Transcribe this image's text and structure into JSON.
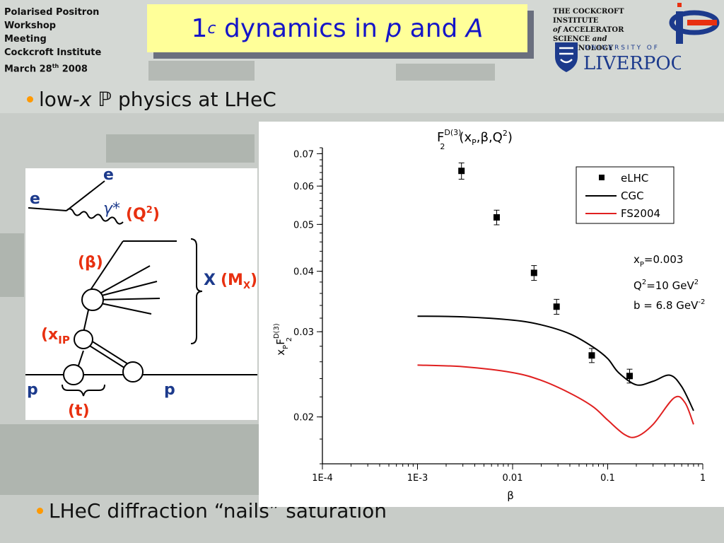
{
  "conference": {
    "line1": "Polarised Positron",
    "line2": "Workshop",
    "line3": "Meeting",
    "line4": "Cockcroft Institute",
    "date_prefix": "March 28",
    "date_sup": "th",
    "date_year": " 2008"
  },
  "slide_title": {
    "part1": "1",
    "sub": "c",
    "part2": " dynamics in ",
    "p": "p",
    "and": " and ",
    "A": "A"
  },
  "institute": {
    "line1": "THE COCKCROFT INSTITUTE",
    "line2_of": "of",
    "line2_rest": " ACCELERATOR",
    "line3_a": "SCIENCE ",
    "line3_and": "and",
    "line3_b": " TECHNOLOGY"
  },
  "liverpool": {
    "university_of": "U N I V E R S I T Y   O F",
    "name": "LIVERPOOL"
  },
  "bullets": {
    "first_pre": "low-",
    "first_x": "x",
    "first_pom": " ℙ",
    "first_post": " physics at LHeC",
    "second": "LHeC diffraction “nails” saturation"
  },
  "feynman": {
    "e_in": "e",
    "e_out": "e",
    "gamma": "γ*",
    "q2": "(Q",
    "q2_sup": "2",
    "q2_close": ")",
    "beta": "(β)",
    "X": "X",
    "Mx": "(M",
    "Mx_sub": "X",
    "Mx_close": ")",
    "xp": "(x",
    "xp_sub": "IP",
    "p_in": "p",
    "p_out": "p",
    "t": "(t)"
  },
  "chart_data": {
    "type": "scatter",
    "title": "F2D(3)(xP, β, Q2)",
    "title_parts": {
      "F": "F",
      "sup": "D(3)",
      "sub": "2",
      "args": "(x",
      "argsub": "P",
      "args2": ",β,Q",
      "argsup": "2",
      "args3": ")"
    },
    "xlabel": "β",
    "ylabel": "xPF2D(3)",
    "ylabel_parts": {
      "x": "x",
      "xsub": "P",
      "F": "F",
      "sup": "D(3)",
      "sub": "2"
    },
    "x_scale": "log",
    "y_scale": "log",
    "xlim": [
      0.0001,
      1
    ],
    "ylim": [
      0.016,
      0.072
    ],
    "x_ticks": [
      {
        "v": 0.0001,
        "label": "1E-4"
      },
      {
        "v": 0.001,
        "label": "1E-3"
      },
      {
        "v": 0.01,
        "label": "0.01"
      },
      {
        "v": 0.1,
        "label": "0.1"
      },
      {
        "v": 1,
        "label": "1"
      }
    ],
    "y_ticks": [
      {
        "v": 0.02,
        "label": "0.02"
      },
      {
        "v": 0.03,
        "label": "0.03"
      },
      {
        "v": 0.04,
        "label": "0.04"
      },
      {
        "v": 0.05,
        "label": "0.05"
      },
      {
        "v": 0.06,
        "label": "0.06"
      },
      {
        "v": 0.07,
        "label": "0.07"
      }
    ],
    "grid": false,
    "legend_position": "top-right",
    "series": [
      {
        "name": "eLHC",
        "type": "scatter",
        "color": "#000000",
        "x": [
          0.0029,
          0.0068,
          0.0168,
          0.029,
          0.068,
          0.17
        ],
        "y": [
          0.0645,
          0.0517,
          0.0397,
          0.0338,
          0.0268,
          0.0243
        ],
        "err": [
          0.0025,
          0.0018,
          0.0014,
          0.0012,
          0.0009,
          0.0008
        ]
      },
      {
        "name": "CGC",
        "type": "line",
        "color": "#000000",
        "x": [
          0.001,
          0.003,
          0.01,
          0.02,
          0.04,
          0.07,
          0.1,
          0.13,
          0.2,
          0.3,
          0.45,
          0.6,
          0.8
        ],
        "y": [
          0.0323,
          0.0322,
          0.0317,
          0.031,
          0.0297,
          0.0279,
          0.0264,
          0.0247,
          0.0233,
          0.0237,
          0.0244,
          0.0231,
          0.0206
        ]
      },
      {
        "name": "FS2004",
        "type": "line",
        "color": "#e02020",
        "x": [
          0.001,
          0.003,
          0.01,
          0.02,
          0.04,
          0.07,
          0.1,
          0.15,
          0.2,
          0.3,
          0.5,
          0.65,
          0.8
        ],
        "y": [
          0.0256,
          0.0254,
          0.0247,
          0.0238,
          0.0224,
          0.021,
          0.0197,
          0.0184,
          0.0182,
          0.0193,
          0.0219,
          0.0214,
          0.0193
        ]
      }
    ],
    "annotations": {
      "xp": {
        "pre": "x",
        "sub": "P",
        "post": "=0.003"
      },
      "q2": {
        "pre": "Q",
        "sup": "2",
        "post": "=10 GeV",
        "sup2": "2"
      },
      "b": {
        "pre": "b = 6.8 GeV",
        "sup": "-2"
      }
    }
  },
  "colors": {
    "title_text": "#1515c8",
    "title_bg": "#ffff99",
    "bullet_dot": "#ff9900",
    "feynman_red": "#e83010",
    "feynman_blue": "#1c3a8c",
    "liverpool_blue": "#1c3a8c"
  }
}
